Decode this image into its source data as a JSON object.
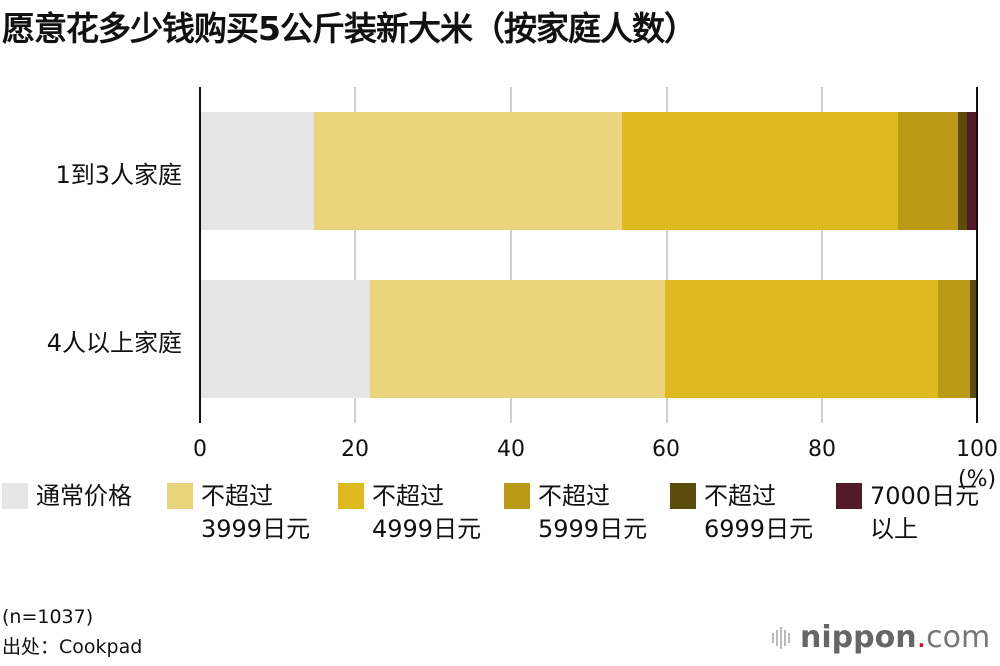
{
  "title": "愿意花多少钱购买5公斤装新大米（按家庭人数）",
  "unit_label": "(%)",
  "x_ticks": [
    "0",
    "20",
    "40",
    "60",
    "80",
    "100"
  ],
  "rows": [
    {
      "label": "1到3人家庭"
    },
    {
      "label": "4人以上家庭"
    }
  ],
  "legend": [
    {
      "label": "通常价格",
      "color": "#e5e5e5"
    },
    {
      "label": "不超过\n3999日元",
      "color": "#ead57c"
    },
    {
      "label": "不超过\n4999日元",
      "color": "#dfb920"
    },
    {
      "label": "不超过\n5999日元",
      "color": "#bb9a17"
    },
    {
      "label": "不超过\n6999日元",
      "color": "#5b4b0d"
    },
    {
      "label": "7000日元\n以上",
      "color": "#531a2a"
    }
  ],
  "footer": {
    "sample": "(n=1037)",
    "source": "出处：Cookpad"
  },
  "brand": {
    "name": "nippon",
    "dot": ".",
    "tld": "com"
  },
  "chart_data": {
    "type": "bar",
    "orientation": "horizontal",
    "stacked": true,
    "title": "愿意花多少钱购买5公斤装新大米（按家庭人数）",
    "xlabel": "(%)",
    "ylabel": "",
    "xlim": [
      0,
      100
    ],
    "x_ticks": [
      0,
      20,
      40,
      60,
      80,
      100
    ],
    "grid": true,
    "legend_position": "bottom",
    "categories": [
      "1到3人家庭",
      "4人以上家庭"
    ],
    "series": [
      {
        "name": "通常价格",
        "color": "#e5e5e5",
        "values": [
          14.7,
          21.9
        ]
      },
      {
        "name": "不超过3999日元",
        "color": "#ead57c",
        "values": [
          39.6,
          37.9
        ]
      },
      {
        "name": "不超过4999日元",
        "color": "#dfb920",
        "values": [
          35.5,
          35.2
        ]
      },
      {
        "name": "不超过5999日元",
        "color": "#bb9a17",
        "values": [
          7.8,
          4.1
        ]
      },
      {
        "name": "不超过6999日元",
        "color": "#5b4b0d",
        "values": [
          1.1,
          0.8
        ]
      },
      {
        "name": "7000日元以上",
        "color": "#531a2a",
        "values": [
          1.3,
          0.1
        ]
      }
    ],
    "annotations": [
      "(n=1037)",
      "出处：Cookpad"
    ]
  }
}
